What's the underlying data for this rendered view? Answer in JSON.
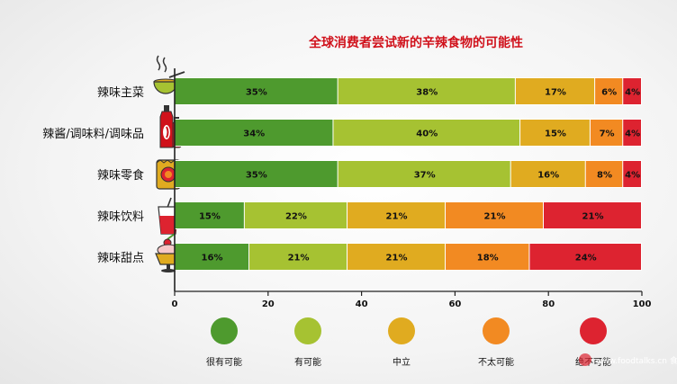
{
  "chart_data": {
    "type": "bar",
    "orientation": "horizontal",
    "stacked": true,
    "title": "全球消费者尝试新的辛辣食物的可能性",
    "categories": [
      "辣味主菜",
      "辣酱/调味料/调味品",
      "辣味零食",
      "辣味饮料",
      "辣味甜点"
    ],
    "series": [
      {
        "name": "很有可能",
        "color": "#4e9a2e",
        "values": [
          35,
          34,
          35,
          15,
          16
        ]
      },
      {
        "name": "有可能",
        "color": "#a6c232",
        "values": [
          38,
          40,
          37,
          22,
          21
        ]
      },
      {
        "name": "中立",
        "color": "#e0ab20",
        "values": [
          17,
          15,
          16,
          21,
          21
        ]
      },
      {
        "name": "不太可能",
        "color": "#f28a22",
        "values": [
          6,
          7,
          8,
          21,
          18
        ]
      },
      {
        "name": "绝不可能",
        "color": "#dd2330",
        "values": [
          4,
          4,
          4,
          21,
          24
        ]
      }
    ],
    "x_ticks": [
      0,
      20,
      40,
      60,
      80,
      100
    ],
    "xlim": [
      0,
      100
    ],
    "legend_position": "bottom"
  },
  "watermark": "www.foodtalks.cn 食品快讯",
  "icons": [
    "noodle-bowl-icon",
    "sauce-bottles-icon",
    "snack-bag-icon",
    "drink-glass-icon",
    "dessert-cup-icon"
  ]
}
